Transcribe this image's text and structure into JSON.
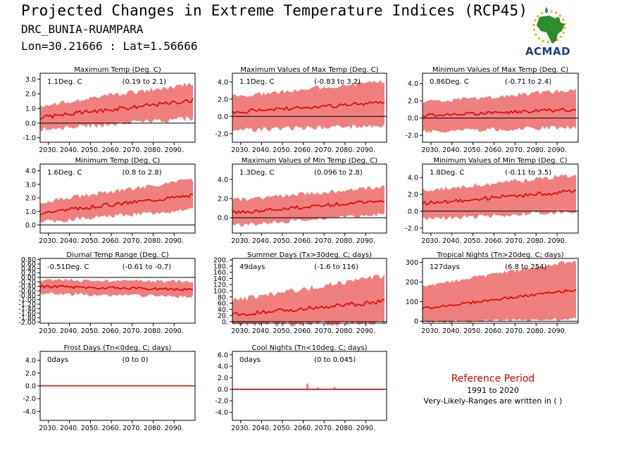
{
  "header": {
    "title": "Projected Changes in Extreme Temperature Indices (RCP45)",
    "station": "DRC_BUNIA-RUAMPARA",
    "coords": "Lon=30.21666 : Lat=1.56666",
    "logo_text": "ACMAD"
  },
  "reference": {
    "title": "Reference Period",
    "years": "1991 to 2020",
    "note": "Very-Likely-Ranges are written in ( )"
  },
  "colors": {
    "band": "#f08080",
    "line": "#e00000",
    "baseline": "#000000",
    "logo_map": "#2e8b2e",
    "logo_text": "#1f3c8c"
  },
  "chart_data": [
    {
      "type": "area",
      "title": "Maximum Temp (Deg. C)",
      "change": "1.1Deg. C",
      "range": "(0.19 to 2.1)",
      "x_ticks": [
        "2030.",
        "2040.",
        "2050.",
        "2060.",
        "2070.",
        "2080.",
        "2090."
      ],
      "xlim": [
        2026,
        2100
      ],
      "y_ticks": [
        "3.0",
        "2.0",
        "1.0",
        "0.0",
        "-1.0"
      ],
      "y_tick_values": [
        3.0,
        2.0,
        1.0,
        0.0,
        -1.0
      ],
      "ylim": [
        -1.3,
        3.4
      ],
      "median_start": 0.4,
      "median_end": 1.55,
      "band_low_start": -0.25,
      "band_low_end": 0.5,
      "band_high_start": 1.0,
      "band_high_end": 2.5,
      "noise": 0.35
    },
    {
      "type": "area",
      "title": "Maximum Values of Max Temp (Deg. C)",
      "change": "1.1Deg. C",
      "range": "(-0.83 to 3.2)",
      "x_ticks": [
        "2030.",
        "2040.",
        "2050.",
        "2060.",
        "2070.",
        "2080.",
        "2090."
      ],
      "xlim": [
        2026,
        2100
      ],
      "y_ticks": [
        "4.0",
        "2.0",
        "0.0",
        "-2.0"
      ],
      "y_tick_values": [
        4.0,
        2.0,
        0.0,
        -2.0
      ],
      "ylim": [
        -3.0,
        5.0
      ],
      "median_start": 0.5,
      "median_end": 1.6,
      "band_low_start": -1.3,
      "band_low_end": -0.8,
      "band_high_start": 2.0,
      "band_high_end": 3.8,
      "noise": 0.6
    },
    {
      "type": "area",
      "title": "Minimum Values of Max Temp (Deg. C)",
      "change": "0.86Deg. C",
      "range": "(-0.71 to 2.4)",
      "x_ticks": [
        "2030.",
        "2040.",
        "2050.",
        "2060.",
        "2070.",
        "2080.",
        "2090."
      ],
      "xlim": [
        2026,
        2100
      ],
      "y_ticks": [
        "4.0",
        "2.0",
        "0.0",
        "-2.0"
      ],
      "y_tick_values": [
        4.0,
        2.0,
        0.0,
        -2.0
      ],
      "ylim": [
        -2.8,
        5.2
      ],
      "median_start": 0.3,
      "median_end": 1.0,
      "band_low_start": -1.3,
      "band_low_end": -0.8,
      "band_high_start": 1.6,
      "band_high_end": 3.0,
      "noise": 0.5
    },
    {
      "type": "area",
      "title": "Minimum Temp (Deg. C)",
      "change": "1.6Deg. C",
      "range": "(0.8 to 2.8)",
      "x_ticks": [
        "2030.",
        "2040.",
        "2050.",
        "2060.",
        "2070.",
        "2080.",
        "2090."
      ],
      "xlim": [
        2026,
        2100
      ],
      "y_ticks": [
        "4.0",
        "3.0",
        "2.0",
        "1.0",
        "0.0"
      ],
      "y_tick_values": [
        4.0,
        3.0,
        2.0,
        1.0,
        0.0
      ],
      "ylim": [
        -0.6,
        4.5
      ],
      "median_start": 0.9,
      "median_end": 2.2,
      "band_low_start": 0.4,
      "band_low_end": 1.3,
      "band_high_start": 1.5,
      "band_high_end": 3.2,
      "noise": 0.35
    },
    {
      "type": "area",
      "title": "Maximum Values of Min Temp (Deg. C)",
      "change": "1.3Deg. C",
      "range": "(0.096 to 2.8)",
      "x_ticks": [
        "2030.",
        "2040.",
        "2050.",
        "2060.",
        "2070.",
        "2080.",
        "2090."
      ],
      "xlim": [
        2026,
        2100
      ],
      "y_ticks": [
        "4.0",
        "2.0",
        "0.0"
      ],
      "y_tick_values": [
        4.0,
        2.0,
        0.0
      ],
      "ylim": [
        -1.6,
        5.6
      ],
      "median_start": 0.5,
      "median_end": 1.8,
      "band_low_start": -0.6,
      "band_low_end": 0.6,
      "band_high_start": 1.6,
      "band_high_end": 3.0,
      "noise": 0.45
    },
    {
      "type": "area",
      "title": "Minimum Values of Min Temp (Deg. C)",
      "change": "1.8Deg. C",
      "range": "(-0.11 to 3.5)",
      "x_ticks": [
        "2030.",
        "2040.",
        "2050.",
        "2060.",
        "2070.",
        "2080.",
        "2090."
      ],
      "xlim": [
        2026,
        2100
      ],
      "y_ticks": [
        "4.0",
        "2.0",
        "0.0",
        "-2.0"
      ],
      "y_tick_values": [
        4.0,
        2.0,
        0.0,
        -2.0
      ],
      "ylim": [
        -2.6,
        5.6
      ],
      "median_start": 0.9,
      "median_end": 2.4,
      "band_low_start": -0.7,
      "band_low_end": 0.3,
      "band_high_start": 2.2,
      "band_high_end": 4.0,
      "noise": 0.6
    },
    {
      "type": "area",
      "title": "Diurnal Temp Range (Deg. C)",
      "change": "-0.51Deg. C",
      "range": "(-0.61 to -0.7)",
      "x_ticks": [
        "2030.",
        "2040.",
        "2050.",
        "2060.",
        "2070.",
        "2080.",
        "2090."
      ],
      "xlim": [
        2026,
        2100
      ],
      "y_ticks": [
        "0.80",
        "0.40",
        "0.00",
        "-0.40",
        "-0.80",
        "-1.20",
        "-1.60",
        "-2.00"
      ],
      "y_tick_values": [
        0.8,
        0.4,
        0.0,
        -0.4,
        -0.8,
        -1.2,
        -1.6,
        -2.0
      ],
      "extra_y_ticks": [
        "0.60",
        "0.20",
        "-0.20",
        "-0.60",
        "-1.00",
        "-1.40",
        "-1.80"
      ],
      "extra_y_tick_values": [
        0.6,
        0.2,
        -0.2,
        -0.6,
        -1.0,
        -1.4,
        -1.8
      ],
      "ylim": [
        -2.05,
        0.85
      ],
      "median_start": -0.4,
      "median_end": -0.55,
      "band_low_start": -0.65,
      "band_low_end": -0.8,
      "band_high_start": -0.2,
      "band_high_end": -0.25,
      "noise": 0.15
    },
    {
      "type": "area",
      "title": "Summer Days (Tx>30deg. C; days)",
      "change": "49days",
      "range": "(-1.6 to 116)",
      "x_ticks": [
        "2030.",
        "2040.",
        "2050.",
        "2060.",
        "2070.",
        "2080.",
        "2090."
      ],
      "xlim": [
        2026,
        2100
      ],
      "y_ticks": [
        "200.",
        "160.",
        "120.",
        "80.",
        "40.",
        "0."
      ],
      "y_tick_values": [
        200,
        160,
        120,
        80,
        40,
        0
      ],
      "extra_y_ticks": [
        "180.",
        "140.",
        "100.",
        "60.",
        "20."
      ],
      "extra_y_tick_values": [
        180,
        140,
        100,
        60,
        20
      ],
      "ylim": [
        -5,
        205
      ],
      "median_start": 22,
      "median_end": 65,
      "band_low_start": 0,
      "band_low_end": 5,
      "band_high_start": 60,
      "band_high_end": 140,
      "noise": 18
    },
    {
      "type": "area",
      "title": "Tropical Nights (Tn>20deg. C; days)",
      "change": "127days",
      "range": "(6.8 to 254)",
      "x_ticks": [
        "2030.",
        "2040.",
        "2050.",
        "2060.",
        "2070.",
        "2080.",
        "2090."
      ],
      "xlim": [
        2026,
        2100
      ],
      "y_ticks": [
        "300",
        "200",
        "100",
        "0"
      ],
      "y_tick_values": [
        300,
        200,
        100,
        0
      ],
      "ylim": [
        -10,
        320
      ],
      "median_start": 65,
      "median_end": 160,
      "band_low_start": 5,
      "band_low_end": 20,
      "band_high_start": 170,
      "band_high_end": 300,
      "noise": 18
    },
    {
      "type": "area",
      "title": "Frost Days (Tn<0deg. C; days)",
      "change": "0days",
      "range": "(0 to 0)",
      "x_ticks": [
        "2030.",
        "2040.",
        "2050.",
        "2060.",
        "2070.",
        "2080.",
        "2090."
      ],
      "xlim": [
        2026,
        2100
      ],
      "y_ticks": [
        "4.0",
        "2.0",
        "0.0",
        "-2.0",
        "-4.0"
      ],
      "y_tick_values": [
        4.0,
        2.0,
        0.0,
        -2.0,
        -4.0
      ],
      "ylim": [
        -5.4,
        5.4
      ],
      "median_start": 0,
      "median_end": 0,
      "band_low_start": 0,
      "band_low_end": 0,
      "band_high_start": 0,
      "band_high_end": 0,
      "noise": 0
    },
    {
      "type": "area",
      "title": "Cool Nights (Tn<10deg. C; days)",
      "change": "0days",
      "range": "(0 to 0.045)",
      "x_ticks": [
        "2030.",
        "2040.",
        "2050.",
        "2060.",
        "2070.",
        "2080.",
        "2090."
      ],
      "xlim": [
        2026,
        2100
      ],
      "y_ticks": [
        "6.0",
        "4.0",
        "2.0",
        "0.0",
        "-2.0",
        "-4.0"
      ],
      "y_tick_values": [
        6.0,
        4.0,
        2.0,
        0.0,
        -2.0,
        -4.0
      ],
      "ylim": [
        -5.4,
        6.6
      ],
      "median_start": 0,
      "median_end": 0,
      "band_low_start": 0,
      "band_low_end": 0,
      "band_high_start": 0,
      "band_high_end": 0.1,
      "noise": 0,
      "spikes": [
        [
          2062,
          1.0
        ],
        [
          2067,
          0.3
        ],
        [
          2075,
          0.4
        ]
      ]
    }
  ]
}
